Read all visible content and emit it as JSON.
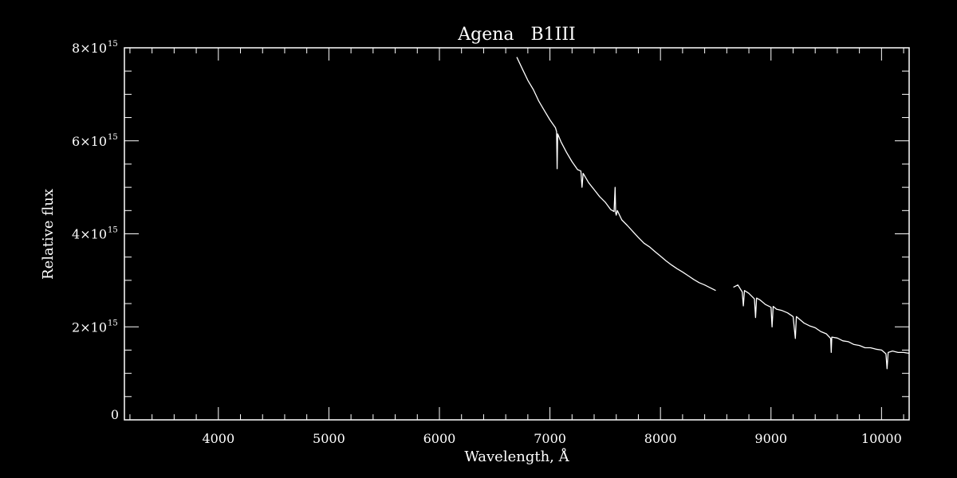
{
  "colors": {
    "background": "#000000",
    "foreground": "#ffffff"
  },
  "chart_data": {
    "type": "line",
    "title": "Agena   B1III",
    "xlabel": "Wavelength, Å",
    "ylabel": "Relative flux",
    "xlim": [
      3150,
      10250
    ],
    "ylim": [
      0,
      8000000000000000.0
    ],
    "x_ticks": [
      {
        "value": 4000,
        "label": "4000"
      },
      {
        "value": 5000,
        "label": "5000"
      },
      {
        "value": 6000,
        "label": "6000"
      },
      {
        "value": 7000,
        "label": "7000"
      },
      {
        "value": 8000,
        "label": "8000"
      },
      {
        "value": 9000,
        "label": "9000"
      },
      {
        "value": 10000,
        "label": "10000"
      }
    ],
    "y_ticks": [
      {
        "value": 0,
        "mantissa": "0",
        "exponent": ""
      },
      {
        "value": 2000000000000000.0,
        "mantissa": "2×10",
        "exponent": "15"
      },
      {
        "value": 4000000000000000.0,
        "mantissa": "4×10",
        "exponent": "15"
      },
      {
        "value": 6000000000000000.0,
        "mantissa": "6×10",
        "exponent": "15"
      },
      {
        "value": 8000000000000000.0,
        "mantissa": "8×10",
        "exponent": "15"
      }
    ],
    "grid": false,
    "legend": "none",
    "series": [
      {
        "segments": [
          {
            "x": [
              6700,
              6750,
              6800,
              6850,
              6900,
              6950,
              7000,
              7050,
              7060,
              7065,
              7070,
              7100,
              7150,
              7200,
              7250,
              7280,
              7290,
              7300,
              7350,
              7400,
              7450,
              7500,
              7550,
              7580,
              7590,
              7595,
              7600,
              7610,
              7650,
              7700,
              7750,
              7800,
              7850,
              7900,
              7950,
              8000,
              8050,
              8100,
              8150,
              8200,
              8250,
              8300,
              8350,
              8400,
              8450,
              8500
            ],
            "y": [
              7800000000000000.0,
              7550000000000000.0,
              7300000000000000.0,
              7100000000000000.0,
              6850000000000000.0,
              6650000000000000.0,
              6450000000000000.0,
              6280000000000000.0,
              6200000000000000.0,
              5400000000000000.0,
              6150000000000000.0,
              5980000000000000.0,
              5750000000000000.0,
              5550000000000000.0,
              5380000000000000.0,
              5350000000000000.0,
              5000000000000000.0,
              5300000000000000.0,
              5100000000000000.0,
              4950000000000000.0,
              4800000000000000.0,
              4680000000000000.0,
              4520000000000000.0,
              4480000000000000.0,
              5000000000000000.0,
              4450000000000000.0,
              4400000000000000.0,
              4500000000000000.0,
              4300000000000000.0,
              4180000000000000.0,
              4050000000000000.0,
              3920000000000000.0,
              3800000000000000.0,
              3720000000000000.0,
              3620000000000000.0,
              3520000000000000.0,
              3420000000000000.0,
              3330000000000000.0,
              3250000000000000.0,
              3180000000000000.0,
              3100000000000000.0,
              3020000000000000.0,
              2950000000000000.0,
              2900000000000000.0,
              2840000000000000.0,
              2780000000000000.0
            ]
          },
          {
            "x": [
              8660,
              8700,
              8740,
              8750,
              8760,
              8800,
              8850,
              8860,
              8870,
              8900,
              8950,
              9000,
              9010,
              9020,
              9050,
              9100,
              9150,
              9200,
              9220,
              9230,
              9250,
              9300,
              9350,
              9400,
              9450,
              9500,
              9540,
              9545,
              9550,
              9600,
              9650,
              9700,
              9750,
              9800,
              9850,
              9900,
              9950,
              10000,
              10040,
              10050,
              10060,
              10100,
              10150,
              10200,
              10250
            ],
            "y": [
              2850000000000000.0,
              2900000000000000.0,
              2750000000000000.0,
              2450000000000000.0,
              2780000000000000.0,
              2720000000000000.0,
              2600000000000000.0,
              2200000000000000.0,
              2620000000000000.0,
              2580000000000000.0,
              2480000000000000.0,
              2420000000000000.0,
              2000000000000000.0,
              2440000000000000.0,
              2380000000000000.0,
              2350000000000000.0,
              2300000000000000.0,
              2220000000000000.0,
              1750000000000000.0,
              2220000000000000.0,
              2180000000000000.0,
              2080000000000000.0,
              2020000000000000.0,
              1980000000000000.0,
              1900000000000000.0,
              1850000000000000.0,
              1750000000000000.0,
              1450000000000000.0,
              1780000000000000.0,
              1760000000000000.0,
              1700000000000000.0,
              1680000000000000.0,
              1620000000000000.0,
              1600000000000000.0,
              1550000000000000.0,
              1550000000000000.0,
              1520000000000000.0,
              1500000000000000.0,
              1420000000000000.0,
              1100000000000000.0,
              1450000000000000.0,
              1480000000000000.0,
              1450000000000000.0,
              1450000000000000.0,
              1430000000000000.0
            ]
          }
        ]
      }
    ]
  }
}
